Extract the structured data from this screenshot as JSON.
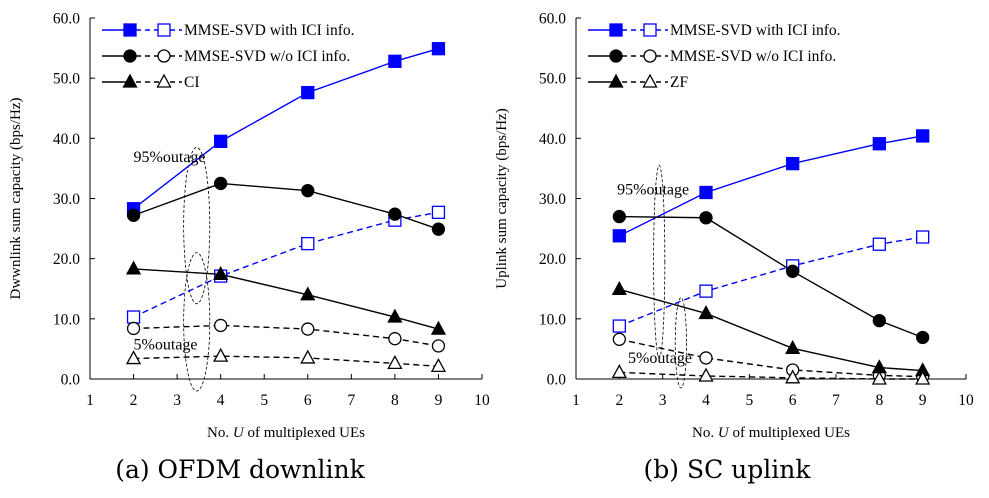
{
  "figure": {
    "panels": [
      {
        "caption": "(a) OFDM downlink"
      },
      {
        "caption": "(b) SC uplink"
      }
    ]
  },
  "chart_data": [
    {
      "type": "line",
      "title": "",
      "caption": "(a) OFDM downlink",
      "xlabel_prefix": "No. ",
      "xlabel_var": "U",
      "xlabel_suffix": " of multiplexed UEs",
      "ylabel": "Dwwnlink sum capacity (bps/Hz)",
      "xlim": [
        1,
        10
      ],
      "ylim": [
        0,
        60
      ],
      "xticks": [
        1,
        2,
        3,
        4,
        5,
        6,
        7,
        8,
        9,
        10
      ],
      "yticks": [
        "0.0",
        "10.0",
        "20.0",
        "30.0",
        "40.0",
        "50.0",
        "60.0"
      ],
      "x": [
        2,
        4,
        6,
        8,
        9
      ],
      "legend_position": "top-left",
      "legend": [
        {
          "label": "MMSE-SVD with ICI info.",
          "marker": "square",
          "color": "#0000ff"
        },
        {
          "label": "MMSE-SVD w/o ICI info.",
          "marker": "circle",
          "color": "#000000"
        },
        {
          "label": "CI",
          "marker": "triangle",
          "color": "#000000"
        }
      ],
      "series": [
        {
          "name": "MMSE-SVD with ICI info.",
          "outage": "95%",
          "marker": "square",
          "filled": true,
          "dashed": false,
          "color": "#0000ff",
          "values": [
            28.3,
            39.5,
            47.6,
            52.8,
            54.9
          ]
        },
        {
          "name": "MMSE-SVD with ICI info.",
          "outage": "5%",
          "marker": "square",
          "filled": false,
          "dashed": true,
          "color": "#0000ff",
          "values": [
            10.3,
            17.1,
            22.5,
            26.4,
            27.7
          ]
        },
        {
          "name": "MMSE-SVD w/o ICI info.",
          "outage": "95%",
          "marker": "circle",
          "filled": true,
          "dashed": false,
          "color": "#000000",
          "values": [
            27.2,
            32.5,
            31.3,
            27.4,
            24.9
          ]
        },
        {
          "name": "MMSE-SVD w/o ICI info.",
          "outage": "5%",
          "marker": "circle",
          "filled": false,
          "dashed": true,
          "color": "#000000",
          "values": [
            8.4,
            8.9,
            8.3,
            6.7,
            5.5
          ]
        },
        {
          "name": "CI",
          "outage": "95%",
          "marker": "triangle",
          "filled": true,
          "dashed": false,
          "color": "#000000",
          "values": [
            18.3,
            17.4,
            14.0,
            10.3,
            8.3
          ]
        },
        {
          "name": "CI",
          "outage": "5%",
          "marker": "triangle",
          "filled": false,
          "dashed": true,
          "color": "#000000",
          "values": [
            3.4,
            3.8,
            3.5,
            2.6,
            2.1
          ]
        }
      ],
      "annotations": [
        {
          "text": "95%outage",
          "x": 2.0,
          "y": 36.1,
          "ellipse": {
            "cx": 3.45,
            "cy": 25.5,
            "rx": 0.3,
            "ry": 13
          }
        },
        {
          "text": "5%outage",
          "x": 2.0,
          "y": 4.9,
          "ellipse": {
            "cx": 3.45,
            "cy": 9.5,
            "rx": 0.3,
            "ry": 11.5
          }
        }
      ]
    },
    {
      "type": "line",
      "title": "",
      "caption": "(b) SC uplink",
      "xlabel_prefix": "No. ",
      "xlabel_var": "U",
      "xlabel_suffix": " of multiplexed UEs",
      "ylabel": "Uplink sum capacity (bps/Hz)",
      "xlim": [
        1,
        10
      ],
      "ylim": [
        0,
        60
      ],
      "xticks": [
        1,
        2,
        3,
        4,
        5,
        6,
        7,
        8,
        9,
        10
      ],
      "yticks": [
        "0.0",
        "10.0",
        "20.0",
        "30.0",
        "40.0",
        "50.0",
        "60.0"
      ],
      "x": [
        2,
        4,
        6,
        8,
        9
      ],
      "legend_position": "top-left",
      "legend": [
        {
          "label": "MMSE-SVD with ICI info.",
          "marker": "square",
          "color": "#0000ff"
        },
        {
          "label": "MMSE-SVD w/o ICI info.",
          "marker": "circle",
          "color": "#000000"
        },
        {
          "label": "ZF",
          "marker": "triangle",
          "color": "#000000"
        }
      ],
      "series": [
        {
          "name": "MMSE-SVD with ICI info.",
          "outage": "95%",
          "marker": "square",
          "filled": true,
          "dashed": false,
          "color": "#0000ff",
          "values": [
            23.8,
            31.0,
            35.8,
            39.1,
            40.4
          ]
        },
        {
          "name": "MMSE-SVD with ICI info.",
          "outage": "5%",
          "marker": "square",
          "filled": false,
          "dashed": true,
          "color": "#0000ff",
          "values": [
            8.8,
            14.6,
            18.8,
            22.4,
            23.6
          ]
        },
        {
          "name": "MMSE-SVD w/o ICI info.",
          "outage": "95%",
          "marker": "circle",
          "filled": true,
          "dashed": false,
          "color": "#000000",
          "values": [
            27.0,
            26.8,
            17.9,
            9.7,
            6.9
          ]
        },
        {
          "name": "MMSE-SVD w/o ICI info.",
          "outage": "5%",
          "marker": "circle",
          "filled": false,
          "dashed": true,
          "color": "#000000",
          "values": [
            6.6,
            3.5,
            1.5,
            0.6,
            0.4
          ]
        },
        {
          "name": "ZF",
          "outage": "95%",
          "marker": "triangle",
          "filled": true,
          "dashed": false,
          "color": "#000000",
          "values": [
            14.9,
            10.9,
            5.1,
            1.9,
            1.4
          ]
        },
        {
          "name": "ZF",
          "outage": "5%",
          "marker": "triangle",
          "filled": false,
          "dashed": true,
          "color": "#000000",
          "values": [
            1.1,
            0.5,
            0.2,
            0.0,
            0.0
          ]
        }
      ],
      "annotations": [
        {
          "text": "95%outage",
          "x": 1.95,
          "y": 30.7,
          "ellipse": {
            "cx": 2.92,
            "cy": 19.5,
            "rx": 0.13,
            "ry": 16
          }
        },
        {
          "text": "5%outage",
          "x": 2.2,
          "y": 2.7,
          "ellipse": {
            "cx": 3.42,
            "cy": 6.0,
            "rx": 0.13,
            "ry": 7.5
          }
        }
      ]
    }
  ]
}
